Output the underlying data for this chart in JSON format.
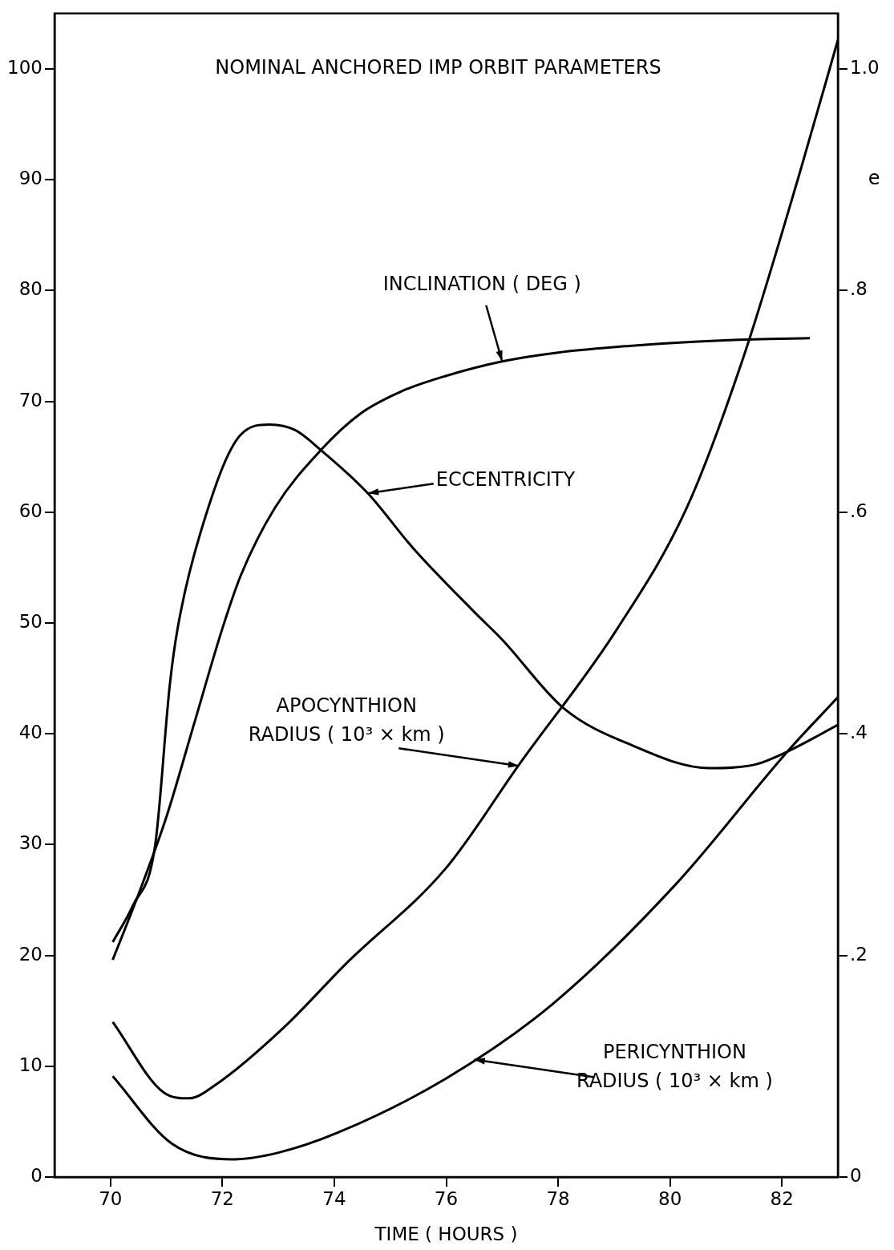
{
  "chart_data": {
    "type": "line",
    "title": "NOMINAL ANCHORED IMP ORBIT PARAMETERS",
    "xlabel": "TIME ( HOURS )",
    "y2label": "e",
    "xlim": [
      69,
      83
    ],
    "xticks": [
      70,
      72,
      74,
      76,
      78,
      80,
      82
    ],
    "ylim": [
      0,
      105
    ],
    "yticks": [
      0,
      10,
      20,
      30,
      40,
      50,
      60,
      70,
      80,
      90,
      100
    ],
    "y2lim": [
      0,
      1.05
    ],
    "y2ticks": [
      0,
      {
        "value": 0.2,
        "label": ".2"
      },
      {
        "value": 0.4,
        "label": ".4"
      },
      {
        "value": 0.6,
        "label": ".6"
      },
      {
        "value": 0.8,
        "label": ".8"
      },
      {
        "value": 1,
        "label": "1.0"
      }
    ],
    "grid": false,
    "legend": false,
    "marker": "none",
    "line_style": "solid",
    "series": [
      {
        "color": "#000000",
        "x": [
          70.04,
          70.5,
          71.0,
          71.5,
          72.0,
          72.33,
          72.94,
          73.76,
          74.47,
          75.2,
          76,
          77,
          78,
          79.27,
          80.5,
          81.5,
          82.5
        ],
        "values": [
          19.6,
          25.5,
          32.5,
          41,
          49.5,
          54.3,
          60.4,
          65.6,
          68.9,
          70.9,
          72.3,
          73.6,
          74.4,
          75.0,
          75.4,
          75.6,
          75.7
        ]
      },
      {
        "color": "#000000",
        "axis": "y2",
        "x": [
          70.04,
          70.4,
          70.8,
          71.06,
          71.2,
          71.6,
          72.33,
          72.84,
          73.3,
          73.76,
          74.6,
          75.4,
          76.5,
          77.0,
          78.1,
          79.3,
          80.7,
          81.5,
          82.1,
          83
        ],
        "values": [
          0.212,
          0.245,
          0.3,
          0.444,
          0.495,
          0.58,
          0.67,
          0.679,
          0.674,
          0.656,
          0.617,
          0.568,
          0.51,
          0.485,
          0.423,
          0.39,
          0.369,
          0.372,
          0.384,
          0.408
        ]
      },
      {
        "color": "#000000",
        "x": [
          70.04,
          70.96,
          71.4,
          71.9,
          73.1,
          74.2,
          76,
          77.3,
          79.06,
          80.3,
          81.3,
          82.3,
          83
        ],
        "values": [
          14.0,
          7.6,
          7.1,
          8.4,
          13.5,
          19.2,
          27.9,
          37.2,
          49.5,
          60.4,
          73.8,
          90.3,
          102.6
        ]
      },
      {
        "color": "#000000",
        "x": [
          70.04,
          71.1,
          72.2,
          73.0,
          74.06,
          76,
          77.9,
          80.1,
          82.1,
          83
        ],
        "values": [
          9.1,
          3.0,
          1.6,
          2.2,
          4.0,
          8.9,
          15.6,
          26.4,
          38.4,
          43.3
        ]
      }
    ],
    "annotations": [
      {
        "text": "INCLINATION ( DEG )",
        "x": 77.0,
        "y": 73.6
      },
      {
        "text": "ECCENTRICITY",
        "x": 74.6,
        "y": 61.7
      },
      {
        "text": "APOCYNTHION\nRADIUS ( 10³ × km )",
        "x": 77.3,
        "y": 37.1
      },
      {
        "text": "PERICYNTHION\nRADIUS ( 10³ × km )",
        "x": 76.5,
        "y": 10.6
      }
    ]
  }
}
